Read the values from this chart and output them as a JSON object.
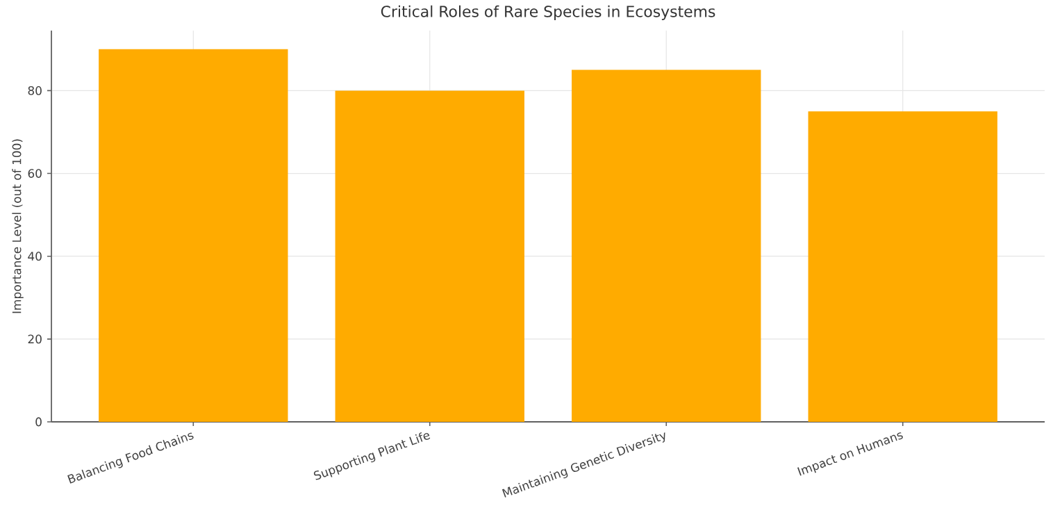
{
  "chart_data": {
    "type": "bar",
    "title": "Critical Roles of Rare Species in Ecosystems",
    "ylabel": "Importance Level (out of 100)",
    "categories": [
      "Balancing Food Chains",
      "Supporting Plant Life",
      "Maintaining Genetic Diversity",
      "Impact on Humans"
    ],
    "values": [
      90,
      80,
      85,
      75
    ],
    "color": "#ffab00",
    "ylim": [
      0,
      94.5
    ],
    "yticks": [
      0,
      20,
      40,
      60,
      80
    ],
    "grid": true
  }
}
